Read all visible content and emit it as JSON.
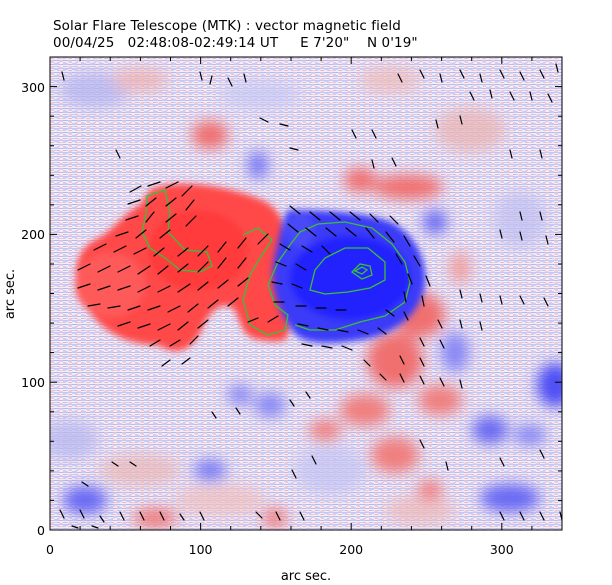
{
  "title": "Solar Flare Telescope (MTK) : vector magnetic field",
  "subtitle": {
    "date": "00/04/25",
    "time_range": "02:48:08-02:49:14 UT",
    "east": "E 7'20\"",
    "north": "N 0'19\""
  },
  "axes": {
    "x_label": "arc sec.",
    "y_label": "arc sec.",
    "x_ticks": [
      "0",
      "100",
      "200",
      "300"
    ],
    "y_ticks": [
      "0",
      "100",
      "200",
      "300"
    ],
    "x_range": [
      0,
      340
    ],
    "y_range": [
      0,
      320
    ]
  },
  "map": {
    "positive_polarity_color": "#ff5050",
    "negative_polarity_color": "#3c3cff",
    "contour_color": "#3bbf3b",
    "arrow_color": "#000000"
  }
}
